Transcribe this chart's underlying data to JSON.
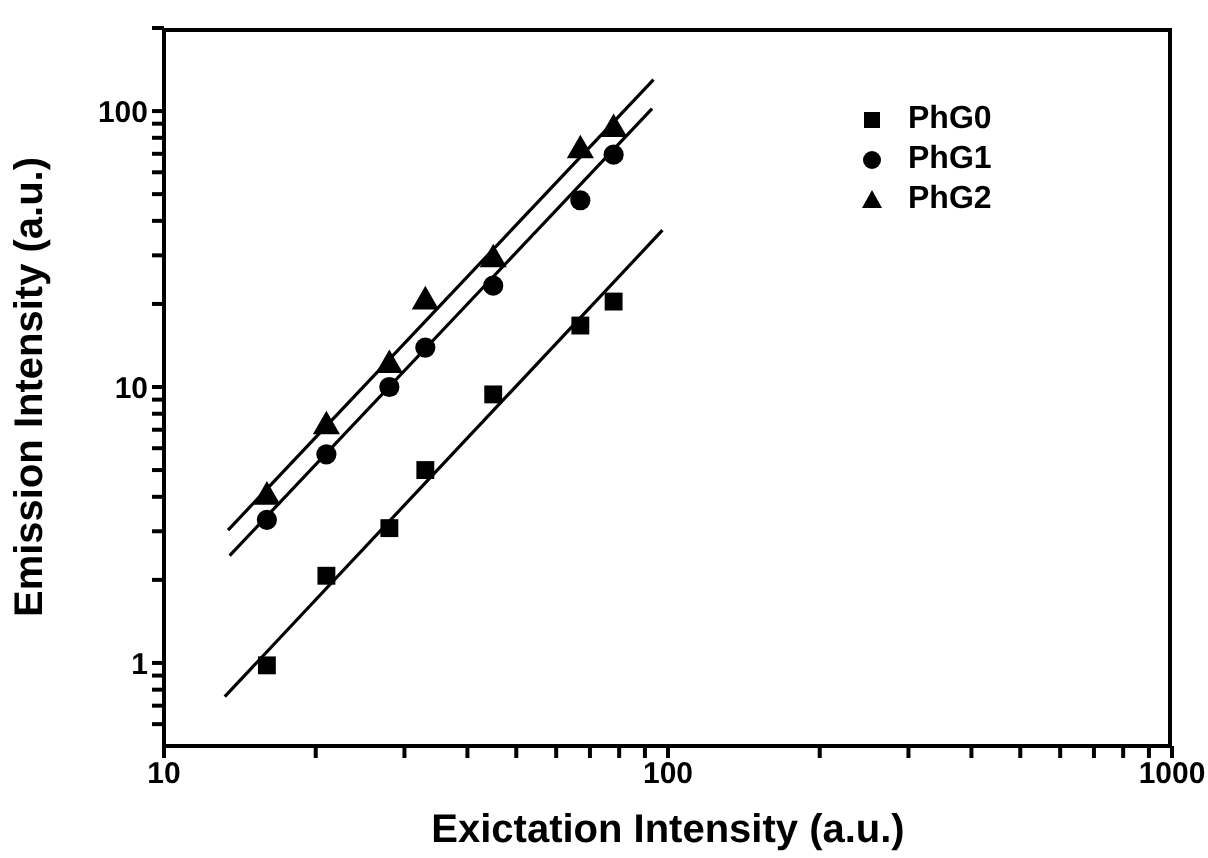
{
  "chart_data": {
    "type": "scatter",
    "xlabel": "Exictation Intensity (a.u.)",
    "ylabel": "Emission Intensity  (a.u.)",
    "log": "xy",
    "grid": false,
    "legend": "top right",
    "xlim": [
      10,
      1000
    ],
    "ylim": [
      0.5,
      200
    ],
    "xticks": [
      10,
      {
        "value": 20,
        "label": null
      },
      {
        "value": 30,
        "label": null
      },
      {
        "value": 40,
        "label": null
      },
      {
        "value": 50,
        "label": null
      },
      {
        "value": 60,
        "label": null
      },
      {
        "value": 70,
        "label": null
      },
      {
        "value": 80,
        "label": null
      },
      {
        "value": 90,
        "label": null
      },
      100,
      {
        "value": 200,
        "label": null
      },
      {
        "value": 300,
        "label": null
      },
      {
        "value": 400,
        "label": null
      },
      {
        "value": 500,
        "label": null
      },
      {
        "value": 600,
        "label": null
      },
      {
        "value": 700,
        "label": null
      },
      {
        "value": 800,
        "label": null
      },
      {
        "value": 900,
        "label": null
      },
      1000
    ],
    "yticks": [
      {
        "value": 0.6,
        "label": null
      },
      {
        "value": 0.7,
        "label": null
      },
      {
        "value": 0.8,
        "label": null
      },
      {
        "value": 0.9,
        "label": null
      },
      1,
      {
        "value": 2,
        "label": null
      },
      {
        "value": 3,
        "label": null
      },
      {
        "value": 4,
        "label": null
      },
      {
        "value": 5,
        "label": null
      },
      {
        "value": 6,
        "label": null
      },
      {
        "value": 7,
        "label": null
      },
      {
        "value": 8,
        "label": null
      },
      {
        "value": 9,
        "label": null
      },
      10,
      {
        "value": 20,
        "label": null
      },
      {
        "value": 30,
        "label": null
      },
      {
        "value": 40,
        "label": null
      },
      {
        "value": 50,
        "label": null
      },
      {
        "value": 60,
        "label": null
      },
      {
        "value": 70,
        "label": null
      },
      {
        "value": 80,
        "label": null
      },
      {
        "value": 90,
        "label": null
      },
      100,
      {
        "value": 200,
        "label": null
      }
    ],
    "x": [
      16,
      21,
      28,
      33,
      45,
      67,
      78
    ],
    "series": [
      {
        "name": "PhG0",
        "marker": "square",
        "color": "#000000",
        "values": [
          0.98,
          2.07,
          3.08,
          5.0,
          9.4,
          16.7,
          20.4
        ]
      },
      {
        "name": "PhG1",
        "marker": "circle",
        "color": "#000000",
        "values": [
          3.3,
          5.7,
          10,
          13.9,
          23.3,
          47.5,
          69.5
        ]
      },
      {
        "name": "PhG2",
        "marker": "triangle",
        "color": "#000000",
        "values": [
          4.0,
          7.2,
          12,
          20.4,
          29,
          72,
          86
        ]
      },
      {
        "type": "line",
        "marker": "none",
        "line_style": "solid",
        "color": "#000000",
        "x": [
          13.2,
          97.5
        ],
        "values": [
          0.755,
          37
        ]
      },
      {
        "type": "line",
        "marker": "none",
        "line_style": "solid",
        "color": "#000000",
        "x": [
          13.5,
          93
        ],
        "values": [
          2.45,
          102
        ]
      },
      {
        "type": "line",
        "marker": "none",
        "line_style": "solid",
        "color": "#000000",
        "x": [
          13.4,
          93.6
        ],
        "values": [
          3.03,
          130
        ]
      }
    ]
  }
}
